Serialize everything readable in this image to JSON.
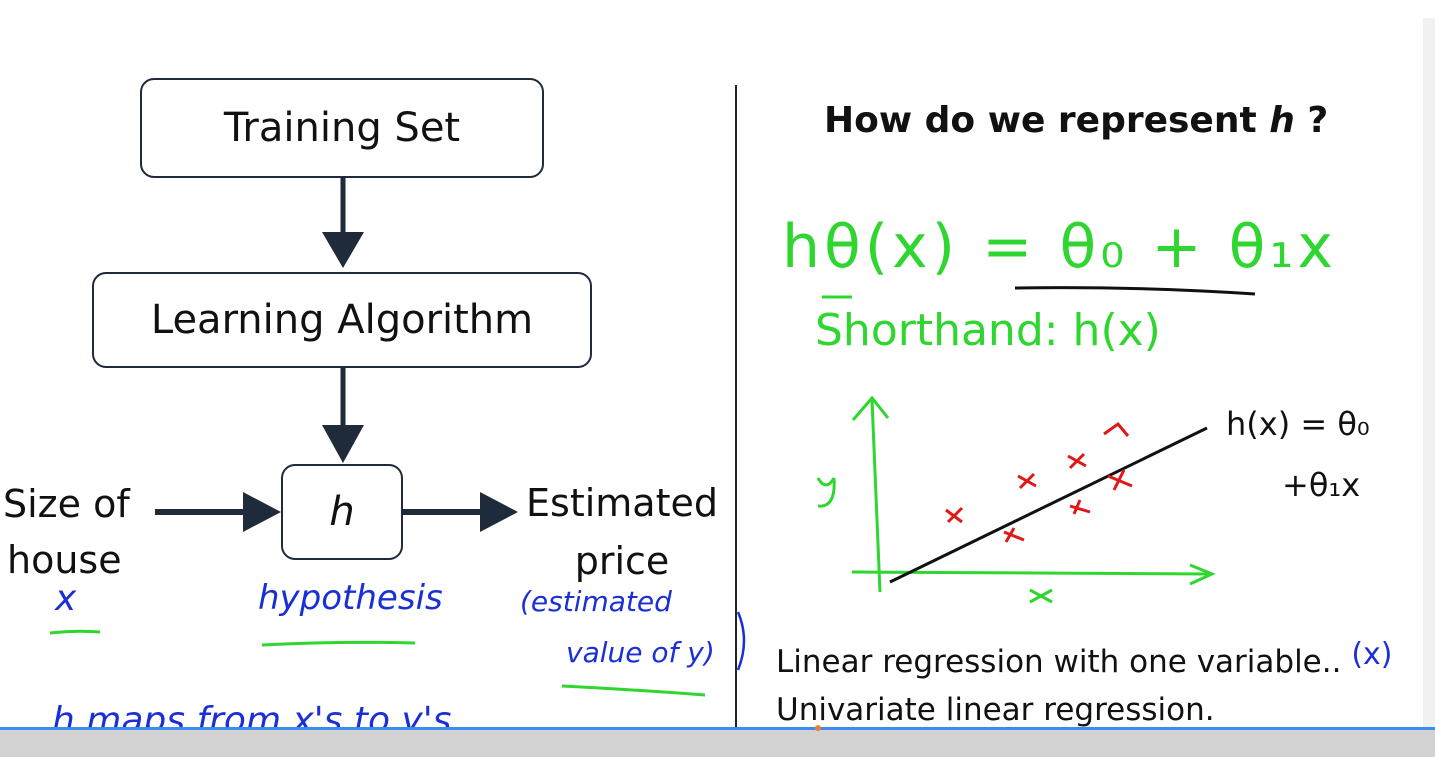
{
  "flow": {
    "training_set": "Training Set",
    "learning_algorithm": "Learning Algorithm",
    "hypothesis_box": "h",
    "input_label_line1": "Size of",
    "input_label_line2": "house",
    "output_label_line1": "Estimated",
    "output_label_line2": "price"
  },
  "notes": {
    "x_under_input": "x",
    "hypothesis_word": "hypothesis",
    "estimated_line1": "(estimated",
    "estimated_line2": "value of y)",
    "maps_sentence": "h   maps   from   x's   to  y's."
  },
  "right": {
    "question_prefix": "How do we represent ",
    "question_var": "h",
    "question_suffix": " ?",
    "formula": "hθ(x) = θ₀ + θ₁x",
    "shorthand": "Shorthand: h(x)",
    "plot_y_label": "y",
    "plot_x_label": "x",
    "plot_line_label1": "h(x) = θ₀",
    "plot_line_label2": "+θ₁x",
    "plot_point_marker": "x",
    "text_line1": "Linear regression with one variable..",
    "text_line1_annotation": "(x)",
    "text_line2": "Univariate linear regression."
  },
  "video": {
    "progress": 0.57
  },
  "colors": {
    "box_border": "#1f2a3b",
    "ink_blue": "#1a2fd6",
    "ink_green": "#2fd62f",
    "ink_red": "#e01818"
  }
}
